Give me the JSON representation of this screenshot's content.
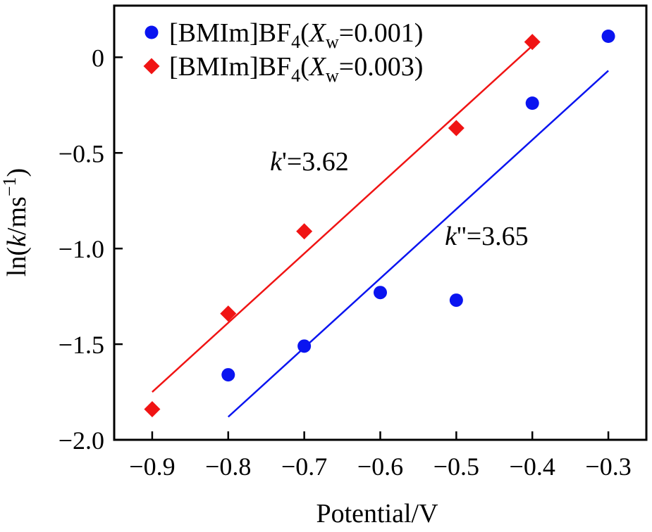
{
  "chart_data": {
    "type": "scatter",
    "title": "",
    "xlabel": "Potential/V",
    "ylabel": {
      "prefix": "ln(",
      "italic": "k",
      "mid": "/ms",
      "sup": "−1",
      "suffix": ")"
    },
    "xlim": [
      -0.95,
      -0.25
    ],
    "ylim": [
      -2.0,
      0.27
    ],
    "xticks": [
      -0.9,
      -0.8,
      -0.7,
      -0.6,
      -0.5,
      -0.4,
      -0.3
    ],
    "xtick_labels": [
      "−0.9",
      "−0.8",
      "−0.7",
      "−0.6",
      "−0.5",
      "−0.4",
      "−0.3"
    ],
    "yticks": [
      -2.0,
      -1.5,
      -1.0,
      -0.5,
      0
    ],
    "ytick_labels": [
      "−2.0",
      "−1.5",
      "−1.0",
      "−0.5",
      "0"
    ],
    "legend_position": "top-left",
    "series": [
      {
        "name": "[BMIm]BF4(Xw=0.001)",
        "legend": {
          "pre": "[BMIm]BF",
          "sub1": "4",
          "paren": "(",
          "var": "X",
          "sub2": "w",
          "post": "=0.001)"
        },
        "marker": "circle",
        "color": "#0a14f0",
        "x": [
          -0.8,
          -0.7,
          -0.6,
          -0.5,
          -0.4,
          -0.3
        ],
        "y": [
          -1.66,
          -1.51,
          -1.23,
          -1.27,
          -0.24,
          0.11
        ],
        "fit": {
          "x": [
            -0.8,
            -0.3
          ],
          "y": [
            -1.88,
            -0.07
          ]
        }
      },
      {
        "name": "[BMIm]BF4(Xw=0.003)",
        "legend": {
          "pre": "[BMIm]BF",
          "sub1": "4",
          "paren": "(",
          "var": "X",
          "sub2": "w",
          "post": "=0.003)"
        },
        "marker": "diamond",
        "color": "#f01414",
        "x": [
          -0.9,
          -0.8,
          -0.7,
          -0.5,
          -0.4
        ],
        "y": [
          -1.84,
          -1.34,
          -0.91,
          -0.37,
          0.08
        ],
        "fit": {
          "x": [
            -0.9,
            -0.4
          ],
          "y": [
            -1.75,
            0.06
          ]
        }
      }
    ],
    "annotations": [
      {
        "italic": "k",
        "rest": "'=3.62",
        "x": -0.745,
        "y": -0.59
      },
      {
        "italic": "k",
        "rest": "''=3.65",
        "x": -0.515,
        "y": -0.98
      }
    ]
  }
}
